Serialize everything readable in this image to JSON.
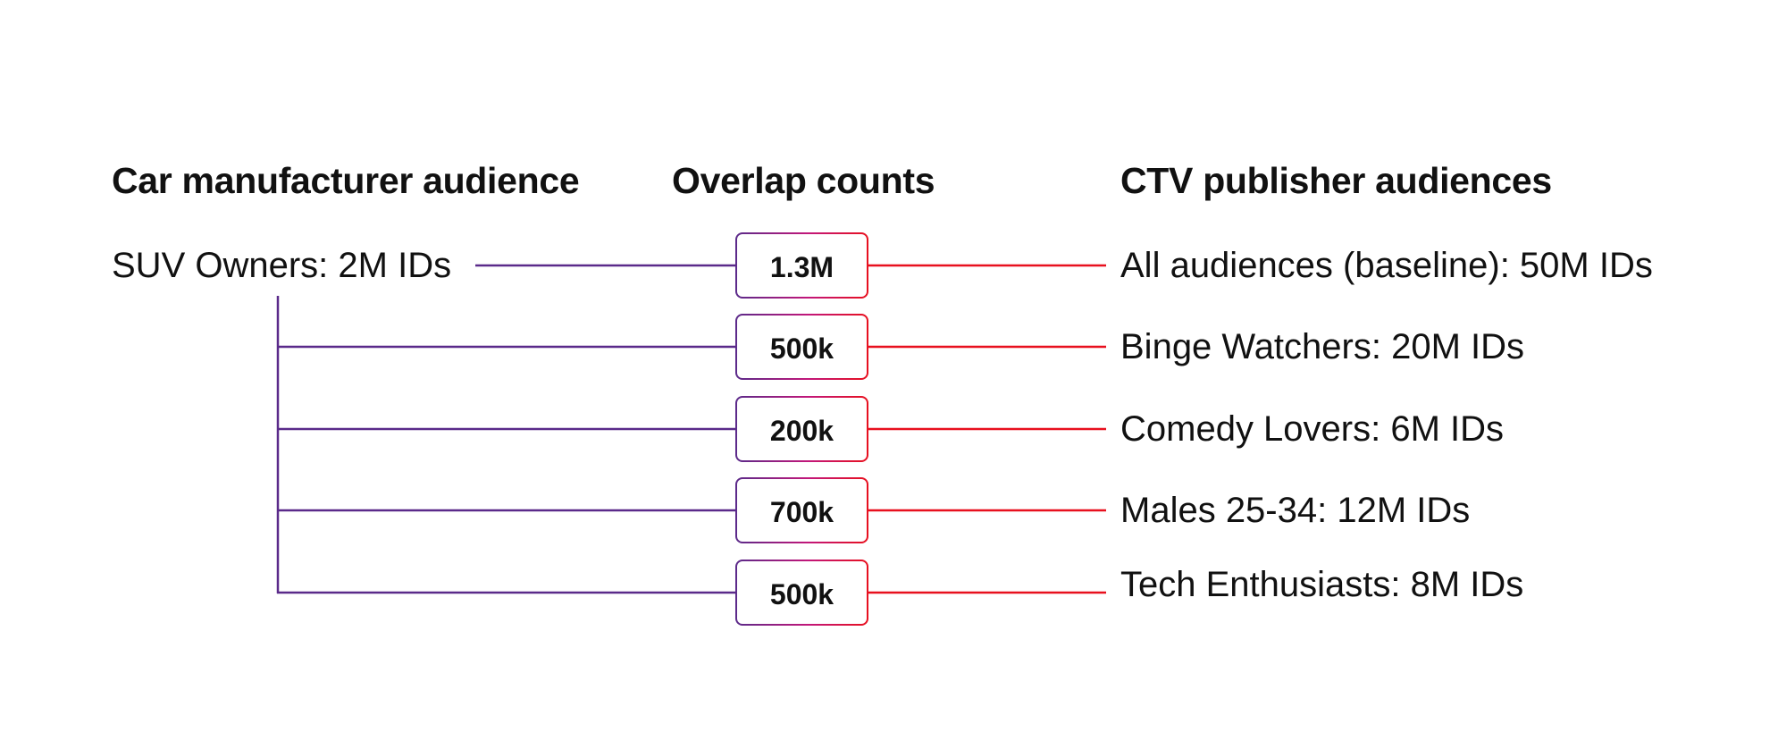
{
  "headings": {
    "source": "Car manufacturer audience",
    "overlap": "Overlap counts",
    "target": "CTV publisher audiences"
  },
  "source_audience": {
    "label": "SUV Owners: 2M IDs"
  },
  "rows": [
    {
      "overlap": "1.3M",
      "target": "All audiences (baseline): 50M IDs"
    },
    {
      "overlap": "500k",
      "target": "Binge Watchers: 20M IDs"
    },
    {
      "overlap": "200k",
      "target": "Comedy Lovers: 6M IDs"
    },
    {
      "overlap": "700k",
      "target": "Males 25-34: 12M IDs"
    },
    {
      "overlap": "500k",
      "target": "Tech Enthusiasts: 8M IDs"
    }
  ],
  "colors": {
    "source_connector": "#5a2a8a",
    "target_connector": "#e8101e",
    "text": "#111111"
  }
}
